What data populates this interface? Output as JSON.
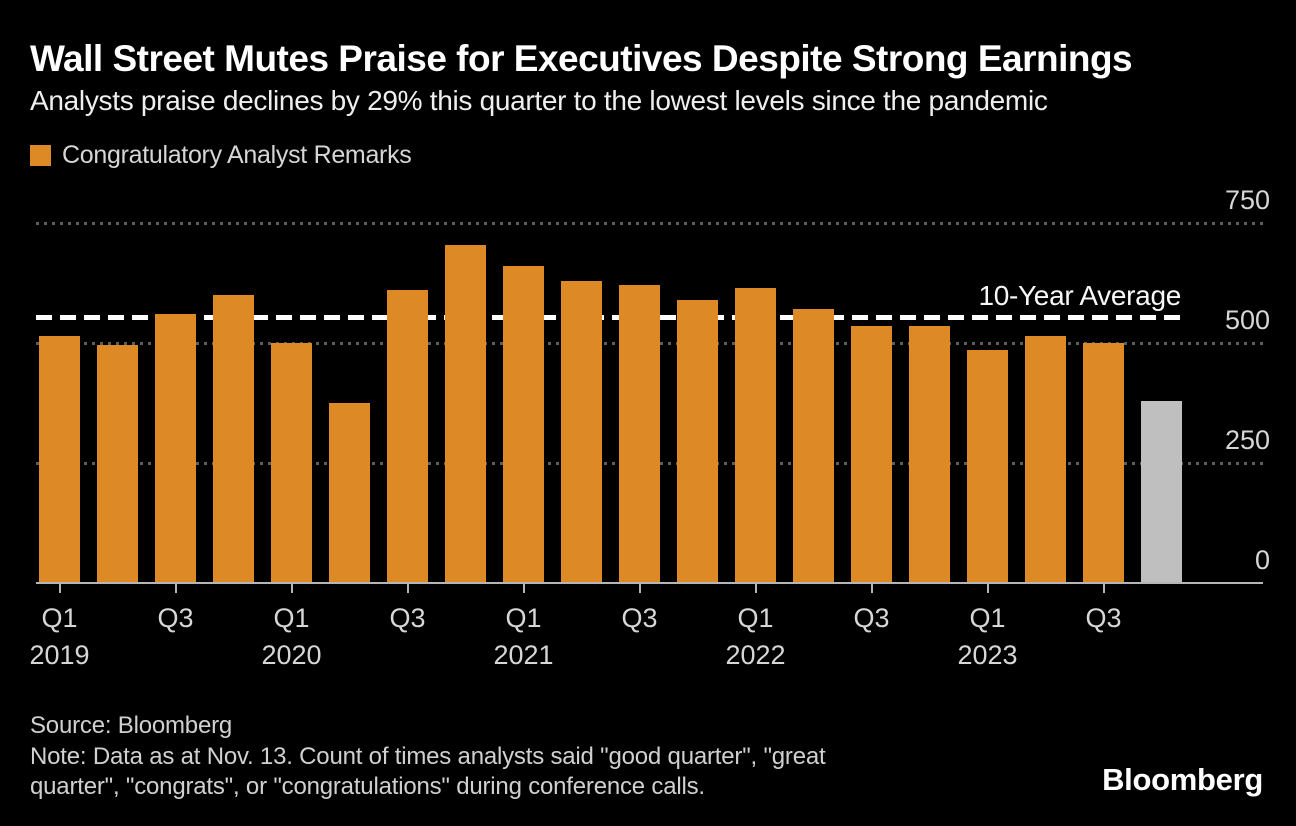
{
  "header": {
    "title": "Wall Street Mutes Praise for Executives Despite Strong Earnings",
    "subtitle": "Analysts praise declines by 29% this quarter to the lowest levels since the pandemic"
  },
  "legend": {
    "label": "Congratulatory Analyst Remarks"
  },
  "chart_data": {
    "type": "bar",
    "title": "Congratulatory Analyst Remarks",
    "categories": [
      "Q1 2019",
      "Q2 2019",
      "Q3 2019",
      "Q4 2019",
      "Q1 2020",
      "Q2 2020",
      "Q3 2020",
      "Q4 2020",
      "Q1 2021",
      "Q2 2021",
      "Q3 2021",
      "Q4 2021",
      "Q1 2022",
      "Q2 2022",
      "Q3 2022",
      "Q4 2022",
      "Q1 2023",
      "Q2 2023",
      "Q3 2023",
      "Q4 2023"
    ],
    "values": [
      515,
      495,
      560,
      600,
      500,
      375,
      610,
      705,
      660,
      630,
      620,
      590,
      615,
      570,
      535,
      535,
      485,
      515,
      500,
      380
    ],
    "bar_color": "#DD8A26",
    "last_bar_color": "#BFBFBF",
    "ylim": [
      0,
      750
    ],
    "y_ticks": [
      0,
      250,
      500,
      750
    ],
    "y_axis_side": "right",
    "grid": "dotted horizontal gridlines at 250/500/750",
    "x_tick_every": 2,
    "average_line": {
      "label": "10-Year Average",
      "value": 554
    },
    "legend_position": "top-left"
  },
  "footer": {
    "source": "Source: Bloomberg",
    "note_lines": "Note: Data as at Nov. 13. Count of times analysts said \"good quarter\", \"great\nquarter\", \"congrats\", or \"congratulations\" during conference calls.",
    "logo": "Bloomberg"
  },
  "colors": {
    "background": "#000000",
    "title_text": "#FFFFFF",
    "subtitle_text": "#EFEFEF",
    "muted_text": "#D6D6D6",
    "gridline": "#5E5E5E",
    "axis_line": "#B5B5B5",
    "average_line": "#FFFFFF"
  }
}
